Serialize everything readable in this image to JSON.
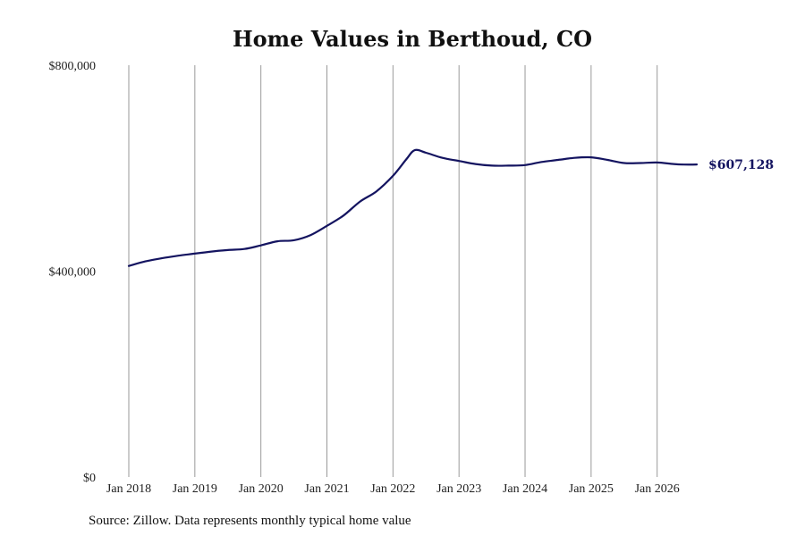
{
  "chart_data": {
    "type": "line",
    "title": "Home Values in Berthoud, CO",
    "xlabel": "",
    "ylabel": "",
    "x_ticks": [
      {
        "label": "Jan 2018",
        "x": 2018.0
      },
      {
        "label": "Jan 2019",
        "x": 2019.0
      },
      {
        "label": "Jan 2020",
        "x": 2020.0
      },
      {
        "label": "Jan 2021",
        "x": 2021.0
      },
      {
        "label": "Jan 2022",
        "x": 2022.0
      },
      {
        "label": "Jan 2023",
        "x": 2023.0
      },
      {
        "label": "Jan 2024",
        "x": 2024.0
      },
      {
        "label": "Jan 2025",
        "x": 2025.0
      },
      {
        "label": "Jan 2026",
        "x": 2026.0
      }
    ],
    "y_ticks": [
      {
        "label": "$0",
        "value": 0
      },
      {
        "label": "$400,000",
        "value": 400000
      },
      {
        "label": "$800,000",
        "value": 800000
      }
    ],
    "xlim": [
      2018.0,
      2026.6
    ],
    "ylim": [
      0,
      800000
    ],
    "grid": "vertical",
    "series": [
      {
        "color": "#141460",
        "points": [
          [
            2018.0,
            410000
          ],
          [
            2018.25,
            419000
          ],
          [
            2018.5,
            425000
          ],
          [
            2018.75,
            430000
          ],
          [
            2019.0,
            434000
          ],
          [
            2019.25,
            438000
          ],
          [
            2019.5,
            441000
          ],
          [
            2019.75,
            443000
          ],
          [
            2020.0,
            450000
          ],
          [
            2020.25,
            458000
          ],
          [
            2020.5,
            460000
          ],
          [
            2020.75,
            470000
          ],
          [
            2021.0,
            488000
          ],
          [
            2021.25,
            508000
          ],
          [
            2021.5,
            535000
          ],
          [
            2021.75,
            555000
          ],
          [
            2022.0,
            585000
          ],
          [
            2022.2,
            617000
          ],
          [
            2022.33,
            635000
          ],
          [
            2022.5,
            630000
          ],
          [
            2022.75,
            620000
          ],
          [
            2023.0,
            614000
          ],
          [
            2023.25,
            608000
          ],
          [
            2023.5,
            605000
          ],
          [
            2023.75,
            605000
          ],
          [
            2024.0,
            606000
          ],
          [
            2024.25,
            612000
          ],
          [
            2024.5,
            616000
          ],
          [
            2024.75,
            620000
          ],
          [
            2025.0,
            621000
          ],
          [
            2025.25,
            616000
          ],
          [
            2025.5,
            610000
          ],
          [
            2025.75,
            610000
          ],
          [
            2026.0,
            611000
          ],
          [
            2026.25,
            608000
          ],
          [
            2026.4,
            607000
          ],
          [
            2026.6,
            607128
          ]
        ]
      }
    ],
    "end_label": "$607,128",
    "source": "Source: Zillow. Data represents monthly typical home value"
  }
}
